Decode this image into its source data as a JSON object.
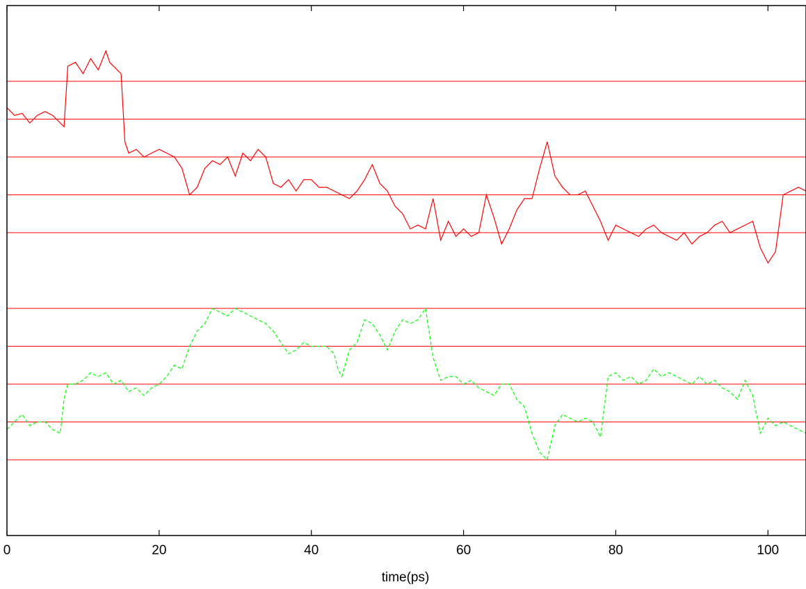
{
  "chart_data": {
    "type": "line",
    "title": "",
    "xlabel": "time(ps)",
    "ylabel": "",
    "xlim": [
      0,
      105
    ],
    "ylim": [
      -14,
      0
    ],
    "grid": false,
    "legend": "none",
    "x_ticks": [
      0,
      20,
      40,
      60,
      80,
      100
    ],
    "x_tick_labels": [
      "0",
      "20",
      "40",
      "60",
      "80",
      "100"
    ],
    "reference_lines": {
      "color": "#ff0000",
      "y": [
        -2,
        -3,
        -4,
        -5,
        -6,
        -8,
        -9,
        -10,
        -11,
        -12
      ]
    },
    "series": [
      {
        "color": "#ff0000",
        "style": "solid",
        "x": [
          0,
          1,
          2,
          3,
          4,
          5,
          6,
          7,
          7.5,
          8,
          9,
          10,
          11,
          12,
          13,
          13.5,
          14,
          15,
          15.5,
          16,
          17,
          18,
          19,
          20,
          21,
          22,
          23,
          24,
          25,
          26,
          27,
          28,
          29,
          30,
          31,
          32,
          33,
          34,
          35,
          36,
          37,
          38,
          39,
          40,
          41,
          42,
          43,
          44,
          45,
          46,
          47,
          48,
          49,
          50,
          51,
          52,
          53,
          54,
          55,
          56,
          57,
          58,
          59,
          60,
          61,
          62,
          63,
          64,
          65,
          66,
          67,
          68,
          69,
          70,
          71,
          72,
          73,
          74,
          75,
          76,
          77,
          78,
          79,
          80,
          81,
          82,
          83,
          84,
          85,
          86,
          87,
          88,
          89,
          90,
          91,
          92,
          93,
          94,
          95,
          96,
          97,
          98,
          99,
          100,
          101,
          102,
          103,
          104,
          105
        ],
        "y": [
          -2.7,
          -2.9,
          -2.85,
          -3.1,
          -2.9,
          -2.8,
          -2.9,
          -3.1,
          -3.2,
          -1.6,
          -1.5,
          -1.8,
          -1.4,
          -1.7,
          -1.2,
          -1.5,
          -1.6,
          -1.8,
          -3.6,
          -3.9,
          -3.8,
          -4.0,
          -3.9,
          -3.8,
          -3.9,
          -4.0,
          -4.3,
          -5.0,
          -4.8,
          -4.3,
          -4.1,
          -4.2,
          -4.0,
          -4.5,
          -3.9,
          -4.1,
          -3.8,
          -4.0,
          -4.7,
          -4.8,
          -4.6,
          -4.9,
          -4.6,
          -4.6,
          -4.8,
          -4.8,
          -4.9,
          -5.0,
          -5.1,
          -4.9,
          -4.6,
          -4.2,
          -4.7,
          -4.9,
          -5.3,
          -5.5,
          -5.9,
          -5.8,
          -5.9,
          -5.1,
          -6.2,
          -5.7,
          -6.1,
          -5.9,
          -6.1,
          -6.0,
          -5.0,
          -5.6,
          -6.3,
          -5.9,
          -5.4,
          -5.1,
          -5.1,
          -4.3,
          -3.6,
          -4.5,
          -4.8,
          -5.0,
          -5.0,
          -4.9,
          -5.3,
          -5.7,
          -6.2,
          -5.8,
          -5.9,
          -6.0,
          -6.1,
          -5.9,
          -5.8,
          -6.0,
          -6.1,
          -6.2,
          -6.0,
          -6.3,
          -6.1,
          -6.0,
          -5.8,
          -5.7,
          -6.0,
          -5.9,
          -5.8,
          -5.7,
          -6.4,
          -6.8,
          -6.5,
          -5.0,
          -4.9,
          -4.8,
          -4.9
        ]
      },
      {
        "color": "#00ff00",
        "style": "dashed",
        "x": [
          0,
          1,
          2,
          3,
          4,
          5,
          6,
          7,
          7.5,
          8,
          9,
          10,
          11,
          12,
          13,
          14,
          15,
          16,
          17,
          18,
          19,
          20,
          21,
          22,
          23,
          24,
          25,
          26,
          27,
          28,
          29,
          30,
          31,
          32,
          33,
          34,
          35,
          36,
          37,
          38,
          39,
          40,
          41,
          42,
          43,
          43.5,
          44,
          45,
          46,
          47,
          48,
          49,
          50,
          51,
          52,
          53,
          54,
          55,
          56,
          57,
          58,
          59,
          60,
          61,
          62,
          63,
          64,
          65,
          66,
          67,
          68,
          69,
          70,
          71,
          72,
          73,
          74,
          75,
          76,
          77,
          78,
          79,
          80,
          81,
          82,
          83,
          84,
          85,
          86,
          87,
          88,
          89,
          90,
          91,
          92,
          93,
          94,
          95,
          96,
          97,
          98,
          99,
          100,
          101,
          102,
          103,
          104,
          105
        ],
        "y": [
          -11.2,
          -11.0,
          -10.8,
          -11.1,
          -11.0,
          -11.0,
          -11.2,
          -11.3,
          -10.4,
          -10.0,
          -10.0,
          -9.9,
          -9.7,
          -9.8,
          -9.7,
          -10.0,
          -9.9,
          -10.2,
          -10.1,
          -10.3,
          -10.1,
          -10.0,
          -9.8,
          -9.5,
          -9.6,
          -9.0,
          -8.6,
          -8.4,
          -8.0,
          -8.1,
          -8.2,
          -8.0,
          -8.1,
          -8.2,
          -8.3,
          -8.4,
          -8.6,
          -8.9,
          -9.2,
          -9.1,
          -8.9,
          -9.0,
          -9.0,
          -9.0,
          -9.2,
          -9.6,
          -9.8,
          -9.1,
          -8.9,
          -8.3,
          -8.4,
          -8.7,
          -9.1,
          -8.6,
          -8.3,
          -8.4,
          -8.3,
          -8.0,
          -9.3,
          -9.9,
          -9.8,
          -9.8,
          -10.0,
          -9.9,
          -10.1,
          -10.2,
          -10.3,
          -10.0,
          -10.0,
          -10.4,
          -10.6,
          -11.3,
          -11.8,
          -12.0,
          -11.1,
          -10.8,
          -10.9,
          -11.0,
          -10.9,
          -11.0,
          -11.4,
          -9.8,
          -9.7,
          -9.9,
          -9.8,
          -10.0,
          -9.9,
          -9.6,
          -9.8,
          -9.7,
          -9.8,
          -9.9,
          -10.0,
          -9.8,
          -10.0,
          -9.9,
          -10.1,
          -10.2,
          -10.4,
          -9.9,
          -10.3,
          -11.3,
          -10.9,
          -11.1,
          -11.0,
          -11.1,
          -11.2,
          -11.3
        ]
      }
    ]
  }
}
